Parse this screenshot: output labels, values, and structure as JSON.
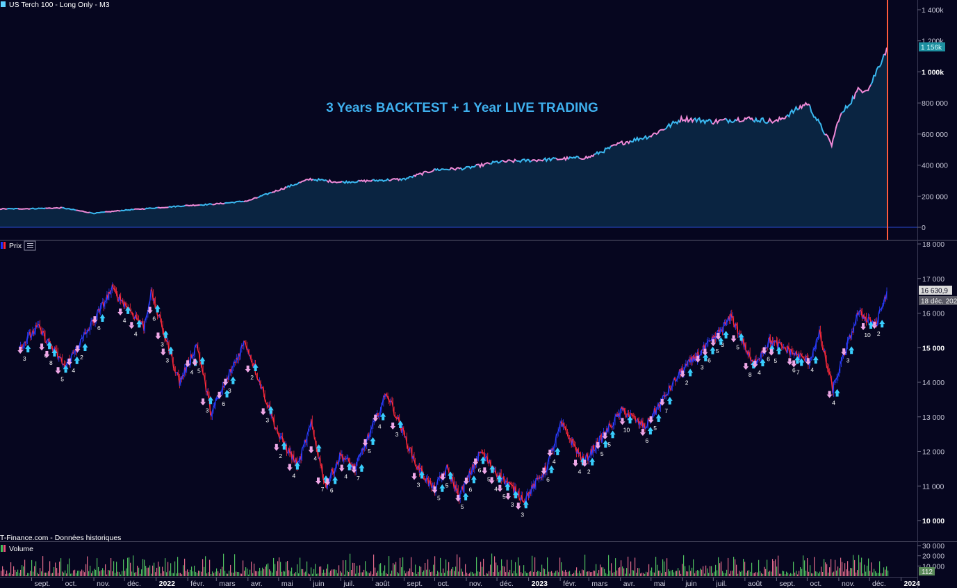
{
  "panels": {
    "equity": {
      "title": "US Terch 100 - Long Only - M3",
      "headline": "3 Years BACKTEST + 1 Year LIVE TRADING",
      "last_value_label": "1 156k",
      "y_ticks": [
        "1 400k",
        "1 200k",
        "1 000k",
        "800 000",
        "600 000",
        "400 000",
        "200 000",
        "0"
      ]
    },
    "price": {
      "title": "Prix",
      "last_value_label": "16 630,9",
      "last_date_label": "18 déc. 2023",
      "y_ticks": [
        "18 000",
        "17 000",
        "16 000",
        "15 000",
        "14 000",
        "13 000",
        "12 000",
        "11 000",
        "10 000"
      ],
      "source": "IT-Finance.com - Données historiques"
    },
    "volume": {
      "title": "Volume",
      "y_ticks": [
        "30 000",
        "20 000",
        "10 000"
      ],
      "last_value_label": "112"
    }
  },
  "x_axis_labels": [
    "sept.",
    "oct.",
    "nov.",
    "déc.",
    "2022",
    "févr.",
    "mars",
    "avr.",
    "mai",
    "juin",
    "juil.",
    "août",
    "sept.",
    "oct.",
    "nov.",
    "déc.",
    "2023",
    "févr.",
    "mars",
    "avr.",
    "mai",
    "juin",
    "juil.",
    "août",
    "sept.",
    "oct.",
    "nov.",
    "déc.",
    "2024"
  ],
  "chart_data": [
    {
      "type": "area",
      "title": "US Terch 100 - Long Only - M3",
      "x": [
        "2020-09",
        "2020-10",
        "2020-11",
        "2020-12",
        "2021-01",
        "2021-02",
        "2021-03",
        "2021-04",
        "2021-05",
        "2021-06",
        "2021-07",
        "2021-08",
        "2021-09",
        "2021-10",
        "2021-11",
        "2021-12",
        "2022-01",
        "2022-02",
        "2022-03",
        "2022-04",
        "2022-05",
        "2022-06",
        "2022-07",
        "2022-08",
        "2022-09",
        "2022-10",
        "2022-11",
        "2022-12",
        "2023-01",
        "2023-02",
        "2023-03",
        "2023-04",
        "2023-05",
        "2023-06",
        "2023-07",
        "2023-08",
        "2023-09",
        "2023-10",
        "2023-10-25",
        "2023-11",
        "2023-11-20",
        "2023-12-01",
        "2023-12-18"
      ],
      "y": [
        30000,
        33000,
        38000,
        45000,
        50000,
        56000,
        70000,
        80000,
        95000,
        100000,
        110000,
        118000,
        120000,
        125000,
        90000,
        110000,
        125000,
        140000,
        150000,
        170000,
        240000,
        310000,
        290000,
        300000,
        310000,
        370000,
        380000,
        420000,
        430000,
        440000,
        450000,
        540000,
        590000,
        700000,
        680000,
        700000,
        680000,
        800000,
        530000,
        700000,
        880000,
        900000,
        1156000
      ],
      "ylim": [
        0,
        1400000
      ],
      "headline": "3 Years BACKTEST + 1 Year LIVE TRADING"
    },
    {
      "type": "line",
      "title": "Prix",
      "x": [
        "2021-08-20",
        "2021-09-07",
        "2021-10-04",
        "2021-10-22",
        "2021-11-19",
        "2021-12-20",
        "2021-12-27",
        "2022-01-24",
        "2022-02-10",
        "2022-02-24",
        "2022-03-29",
        "2022-05-02",
        "2022-05-20",
        "2022-06-02",
        "2022-06-16",
        "2022-07-01",
        "2022-07-15",
        "2022-08-15",
        "2022-09-13",
        "2022-09-30",
        "2022-10-13",
        "2022-10-25",
        "2022-11-15",
        "2022-11-30",
        "2022-12-28",
        "2023-01-18",
        "2023-02-02",
        "2023-02-24",
        "2023-04-03",
        "2023-04-25",
        "2023-05-30",
        "2023-06-30",
        "2023-07-19",
        "2023-08-09",
        "2023-08-25",
        "2023-09-14",
        "2023-10-03",
        "2023-10-13",
        "2023-10-26",
        "2023-11-20",
        "2023-12-08",
        "2023-12-18"
      ],
      "y": [
        15000,
        15600,
        14450,
        15300,
        16700,
        15600,
        16600,
        14000,
        15100,
        13100,
        15200,
        12400,
        11600,
        12800,
        11000,
        11900,
        11500,
        13700,
        11600,
        10900,
        11500,
        10700,
        12000,
        11400,
        10600,
        11500,
        12800,
        11700,
        13200,
        12700,
        14300,
        15200,
        15900,
        14500,
        15200,
        14900,
        14600,
        15400,
        13800,
        16000,
        15700,
        16630.9
      ],
      "ylim": [
        9000,
        18000
      ],
      "source": "IT-Finance.com - Données historiques",
      "annotations": [
        {
          "x": "2021-08-25",
          "text": "3"
        },
        {
          "x": "2021-09-15",
          "text": "6"
        },
        {
          "x": "2021-09-20",
          "text": "8"
        },
        {
          "x": "2021-10-01",
          "text": "5"
        },
        {
          "x": "2021-10-12",
          "text": "4"
        },
        {
          "x": "2021-10-20",
          "text": "2"
        },
        {
          "x": "2021-11-06",
          "text": "6"
        },
        {
          "x": "2021-12-01",
          "text": "4"
        },
        {
          "x": "2021-12-12",
          "text": "4"
        },
        {
          "x": "2021-12-30",
          "text": "6"
        },
        {
          "x": "2022-01-07",
          "text": "3"
        },
        {
          "x": "2022-01-12",
          "text": "3"
        },
        {
          "x": "2022-02-05",
          "text": "4"
        },
        {
          "x": "2022-02-12",
          "text": "5"
        },
        {
          "x": "2022-02-20",
          "text": "3"
        },
        {
          "x": "2022-03-08",
          "text": "6"
        },
        {
          "x": "2022-03-14",
          "text": "3"
        },
        {
          "x": "2022-04-05",
          "text": "2"
        },
        {
          "x": "2022-04-20",
          "text": "3"
        },
        {
          "x": "2022-05-03",
          "text": "2"
        },
        {
          "x": "2022-05-16",
          "text": "4"
        },
        {
          "x": "2022-06-06",
          "text": "4"
        },
        {
          "x": "2022-06-13",
          "text": "7"
        },
        {
          "x": "2022-06-22",
          "text": "6"
        },
        {
          "x": "2022-07-06",
          "text": "4"
        },
        {
          "x": "2022-07-18",
          "text": "7"
        },
        {
          "x": "2022-07-29",
          "text": "5"
        },
        {
          "x": "2022-08-08",
          "text": "4"
        },
        {
          "x": "2022-08-25",
          "text": "3"
        },
        {
          "x": "2022-09-15",
          "text": "3"
        },
        {
          "x": "2022-10-05",
          "text": "5"
        },
        {
          "x": "2022-10-13",
          "text": "5"
        },
        {
          "x": "2022-10-28",
          "text": "5"
        },
        {
          "x": "2022-11-05",
          "text": "6"
        },
        {
          "x": "2022-11-14",
          "text": "6"
        },
        {
          "x": "2022-11-23",
          "text": "5"
        },
        {
          "x": "2022-11-30",
          "text": "4"
        },
        {
          "x": "2022-12-08",
          "text": "5"
        },
        {
          "x": "2022-12-16",
          "text": "3"
        },
        {
          "x": "2022-12-26",
          "text": "3"
        },
        {
          "x": "2023-01-20",
          "text": "6"
        },
        {
          "x": "2023-01-26",
          "text": "4"
        },
        {
          "x": "2023-02-20",
          "text": "4"
        },
        {
          "x": "2023-03-01",
          "text": "2"
        },
        {
          "x": "2023-03-14",
          "text": "5"
        },
        {
          "x": "2023-03-21",
          "text": "5"
        },
        {
          "x": "2023-04-07",
          "text": "10"
        },
        {
          "x": "2023-04-27",
          "text": "6"
        },
        {
          "x": "2023-05-05",
          "text": "5"
        },
        {
          "x": "2023-05-16",
          "text": "7"
        },
        {
          "x": "2023-06-05",
          "text": "2"
        },
        {
          "x": "2023-06-20",
          "text": "3"
        },
        {
          "x": "2023-06-27",
          "text": "6"
        },
        {
          "x": "2023-07-05",
          "text": "5"
        },
        {
          "x": "2023-07-10",
          "text": "3"
        },
        {
          "x": "2023-07-25",
          "text": "5"
        },
        {
          "x": "2023-08-06",
          "text": "8"
        },
        {
          "x": "2023-08-15",
          "text": "4"
        },
        {
          "x": "2023-08-24",
          "text": "6"
        },
        {
          "x": "2023-08-31",
          "text": "5"
        },
        {
          "x": "2023-09-18",
          "text": "6"
        },
        {
          "x": "2023-09-22",
          "text": "7"
        },
        {
          "x": "2023-10-06",
          "text": "4"
        },
        {
          "x": "2023-10-27",
          "text": "4"
        },
        {
          "x": "2023-11-10",
          "text": "3"
        },
        {
          "x": "2023-11-29",
          "text": "10"
        },
        {
          "x": "2023-12-10",
          "text": "2"
        }
      ]
    },
    {
      "type": "bar",
      "title": "Volume",
      "ylim": [
        0,
        30000
      ]
    }
  ]
}
